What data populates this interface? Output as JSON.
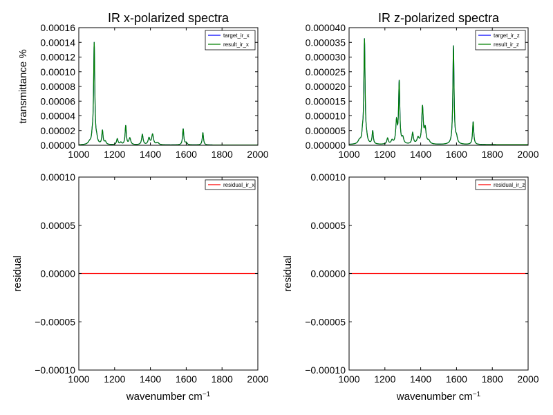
{
  "chart_data": [
    {
      "id": "ir-x",
      "type": "line",
      "title": "IR x-polarized spectra",
      "xlabel": "",
      "ylabel": "transmittance %",
      "xlim": [
        1000,
        2000
      ],
      "ylim": [
        0,
        0.00016
      ],
      "xticks": [
        1000,
        1200,
        1400,
        1600,
        1800,
        2000
      ],
      "xtick_labels": [
        "1000",
        "1200",
        "1400",
        "1600",
        "1800",
        "2000"
      ],
      "yticks": [
        0,
        2e-05,
        4e-05,
        6e-05,
        8e-05,
        0.0001,
        0.00012,
        0.00014,
        0.00016
      ],
      "ytick_labels": [
        "0.00000",
        "0.00002",
        "0.00004",
        "0.00006",
        "0.00008",
        "0.00010",
        "0.00012",
        "0.00014",
        "0.00016"
      ],
      "legend_position": "top-right",
      "baseline": 3e-07,
      "peaks": [
        {
          "center": 1060,
          "height": 3e-06,
          "width": 9
        },
        {
          "center": 1075,
          "height": 8e-06,
          "width": 4
        },
        {
          "center": 1086,
          "height": 0.000138,
          "width": 4
        },
        {
          "center": 1100,
          "height": 6e-06,
          "width": 5
        },
        {
          "center": 1132,
          "height": 1.9e-05,
          "width": 4
        },
        {
          "center": 1148,
          "height": 4e-06,
          "width": 6
        },
        {
          "center": 1215,
          "height": 8e-06,
          "width": 5
        },
        {
          "center": 1235,
          "height": 3e-06,
          "width": 6
        },
        {
          "center": 1262,
          "height": 2.6e-05,
          "width": 4
        },
        {
          "center": 1285,
          "height": 9e-06,
          "width": 6
        },
        {
          "center": 1355,
          "height": 1.4e-05,
          "width": 5
        },
        {
          "center": 1392,
          "height": 9e-06,
          "width": 6
        },
        {
          "center": 1412,
          "height": 1.4e-05,
          "width": 6
        },
        {
          "center": 1440,
          "height": 3e-06,
          "width": 8
        },
        {
          "center": 1583,
          "height": 2.2e-05,
          "width": 4
        },
        {
          "center": 1600,
          "height": 3e-06,
          "width": 6
        },
        {
          "center": 1693,
          "height": 1.7e-05,
          "width": 4
        }
      ],
      "series": [
        {
          "name": "target_ir_x",
          "color": "#0000ff",
          "source": "peaks"
        },
        {
          "name": "result_ir_x",
          "color": "#008000",
          "source": "peaks"
        }
      ]
    },
    {
      "id": "ir-z",
      "type": "line",
      "title": "IR z-polarized spectra",
      "xlabel": "",
      "ylabel": "",
      "xlim": [
        1000,
        2000
      ],
      "ylim": [
        0,
        4e-05
      ],
      "xticks": [
        1000,
        1200,
        1400,
        1600,
        1800,
        2000
      ],
      "xtick_labels": [
        "1000",
        "1200",
        "1400",
        "1600",
        "1800",
        "2000"
      ],
      "yticks": [
        0,
        5e-06,
        1e-05,
        1.5e-05,
        2e-05,
        2.5e-05,
        3e-05,
        3.5e-05,
        4e-05
      ],
      "ytick_labels": [
        "0.000000",
        "0.000005",
        "0.000010",
        "0.000015",
        "0.000020",
        "0.000025",
        "0.000030",
        "0.000035",
        "0.000040"
      ],
      "legend_position": "top-right",
      "baseline": 2e-07,
      "peaks": [
        {
          "center": 1058,
          "height": 1.2e-06,
          "width": 9
        },
        {
          "center": 1075,
          "height": 2.5e-06,
          "width": 4
        },
        {
          "center": 1086,
          "height": 3.55e-05,
          "width": 4
        },
        {
          "center": 1098,
          "height": 1.5e-06,
          "width": 5
        },
        {
          "center": 1132,
          "height": 4.5e-06,
          "width": 4
        },
        {
          "center": 1215,
          "height": 2e-06,
          "width": 5
        },
        {
          "center": 1240,
          "height": 1.2e-06,
          "width": 6
        },
        {
          "center": 1265,
          "height": 7.5e-06,
          "width": 5
        },
        {
          "center": 1280,
          "height": 2.1e-05,
          "width": 4
        },
        {
          "center": 1300,
          "height": 2e-06,
          "width": 6
        },
        {
          "center": 1355,
          "height": 3.8e-06,
          "width": 5
        },
        {
          "center": 1385,
          "height": 2e-06,
          "width": 7
        },
        {
          "center": 1410,
          "height": 1.25e-05,
          "width": 5
        },
        {
          "center": 1425,
          "height": 5e-06,
          "width": 6
        },
        {
          "center": 1445,
          "height": 1e-06,
          "width": 8
        },
        {
          "center": 1583,
          "height": 3.35e-05,
          "width": 4
        },
        {
          "center": 1600,
          "height": 2e-06,
          "width": 6
        },
        {
          "center": 1693,
          "height": 7.8e-06,
          "width": 4
        }
      ],
      "series": [
        {
          "name": "target_ir_z",
          "color": "#0000ff",
          "source": "peaks"
        },
        {
          "name": "result_ir_z",
          "color": "#008000",
          "source": "peaks"
        }
      ]
    },
    {
      "id": "res-x",
      "type": "line",
      "title": "",
      "xlabel": "wavenumber cm",
      "xlabel_sup": "−1",
      "ylabel": "residual",
      "xlim": [
        1000,
        2000
      ],
      "ylim": [
        -0.0001,
        0.0001
      ],
      "xticks": [
        1000,
        1200,
        1400,
        1600,
        1800,
        2000
      ],
      "xtick_labels": [
        "1000",
        "1200",
        "1400",
        "1600",
        "1800",
        "2000"
      ],
      "yticks": [
        -0.0001,
        -5e-05,
        0,
        5e-05,
        0.0001
      ],
      "ytick_labels": [
        "−0.00010",
        "−0.00005",
        "0.00000",
        "0.00005",
        "0.00010"
      ],
      "legend_position": "top-right",
      "series": [
        {
          "name": "residual_ir_x",
          "color": "#ff0000",
          "x": [
            1000,
            2000
          ],
          "y": [
            0,
            0
          ]
        }
      ]
    },
    {
      "id": "res-z",
      "type": "line",
      "title": "",
      "xlabel": "wavenumber cm",
      "xlabel_sup": "−1",
      "ylabel": "residual",
      "xlim": [
        1000,
        2000
      ],
      "ylim": [
        -0.0001,
        0.0001
      ],
      "xticks": [
        1000,
        1200,
        1400,
        1600,
        1800,
        2000
      ],
      "xtick_labels": [
        "1000",
        "1200",
        "1400",
        "1600",
        "1800",
        "2000"
      ],
      "yticks": [
        -0.0001,
        -5e-05,
        0,
        5e-05,
        0.0001
      ],
      "ytick_labels": [
        "−0.00010",
        "−0.00005",
        "0.00000",
        "0.00005",
        "0.00010"
      ],
      "legend_position": "top-right",
      "series": [
        {
          "name": "residual_ir_z",
          "color": "#ff0000",
          "x": [
            1000,
            2000
          ],
          "y": [
            0,
            0
          ]
        }
      ]
    }
  ]
}
